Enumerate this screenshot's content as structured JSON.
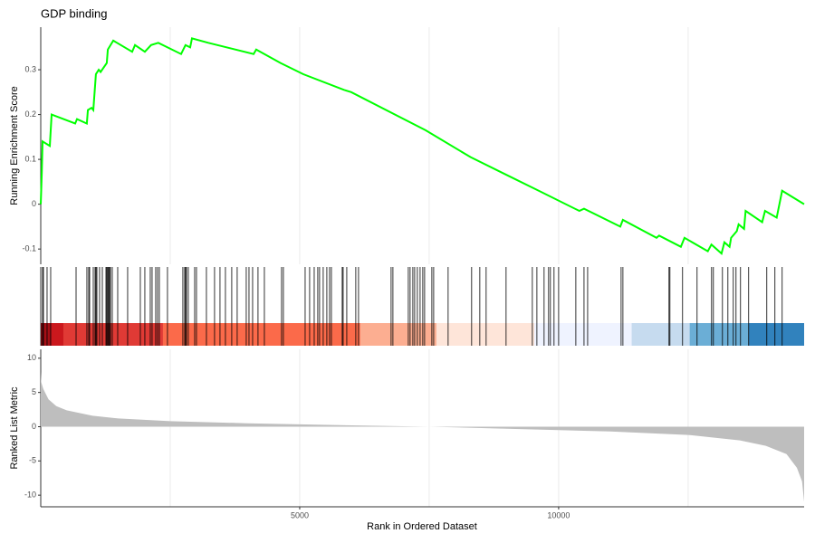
{
  "chart_data": [
    {
      "type": "line",
      "title": "GDP binding",
      "ylabel": "Running Enrichment Score",
      "color": "#00ff00",
      "xlim": [
        0,
        14740
      ],
      "ylim": [
        -0.134,
        0.395
      ],
      "yticks": [
        -0.1,
        0.0,
        0.1,
        0.2,
        0.3
      ],
      "grid": true,
      "xgrid": [
        2500,
        5000,
        7500,
        10000,
        12500
      ],
      "x": [
        0,
        20,
        35,
        175,
        210,
        665,
        700,
        890,
        910,
        980,
        1015,
        1065,
        1120,
        1155,
        1275,
        1295,
        1400,
        1765,
        1820,
        2010,
        2130,
        2270,
        2710,
        2795,
        2885,
        2920,
        3235,
        4110,
        4160,
        4630,
        5070,
        5855,
        5995,
        7430,
        8300,
        9000,
        9615,
        10400,
        10490,
        11190,
        11240,
        11890,
        11940,
        12360,
        12430,
        12880,
        12950,
        13145,
        13200,
        13300,
        13330,
        13440,
        13475,
        13580,
        13610,
        13930,
        13985,
        14210,
        14315,
        14740
      ],
      "values": [
        0,
        0.07,
        0.14,
        0.13,
        0.2,
        0.18,
        0.19,
        0.18,
        0.21,
        0.215,
        0.21,
        0.29,
        0.3,
        0.295,
        0.315,
        0.345,
        0.365,
        0.34,
        0.355,
        0.34,
        0.355,
        0.36,
        0.335,
        0.355,
        0.35,
        0.37,
        0.36,
        0.335,
        0.345,
        0.315,
        0.29,
        0.255,
        0.25,
        0.165,
        0.105,
        0.065,
        0.03,
        -0.015,
        -0.01,
        -0.05,
        -0.035,
        -0.075,
        -0.07,
        -0.095,
        -0.075,
        -0.105,
        -0.09,
        -0.11,
        -0.085,
        -0.095,
        -0.075,
        -0.06,
        -0.045,
        -0.055,
        -0.015,
        -0.04,
        -0.015,
        -0.03,
        0.03,
        0
      ]
    },
    {
      "type": "rug",
      "color": "#000000",
      "xlim": [
        0,
        14740
      ],
      "x": [
        0,
        35,
        52,
        122,
        192,
        682,
        891,
        926,
        944,
        1014,
        1049,
        1066,
        1084,
        1136,
        1189,
        1259,
        1276,
        1294,
        1311,
        1329,
        1346,
        1381,
        1486,
        1678,
        1923,
        2010,
        2115,
        2150,
        2220,
        2255,
        2290,
        2447,
        2744,
        2779,
        2797,
        2814,
        2849,
        2972,
        3007,
        3199,
        3356,
        3461,
        3566,
        3688,
        3793,
        3968,
        4021,
        4091,
        4195,
        4318,
        4650,
        4685,
        5105,
        5192,
        5280,
        5349,
        5384,
        5454,
        5524,
        5577,
        5612,
        5821,
        5839,
        5909,
        6083,
        6136,
        6765,
        6800,
        7097,
        7132,
        7185,
        7220,
        7272,
        7325,
        7377,
        7412,
        7552,
        7587,
        7866,
        8320,
        8478,
        8600,
        8985,
        9492,
        9580,
        9719,
        9806,
        9841,
        9911,
        10000,
        10332,
        10490,
        10560,
        11206,
        11241,
        12131,
        12149,
        12393,
        12673,
        12953,
        12988,
        13163,
        13268,
        13372,
        13425,
        13512,
        13669,
        14019,
        14176,
        14316
      ],
      "bands": [
        {
          "start": 0,
          "end": 192,
          "color": "#a50f15"
        },
        {
          "start": 192,
          "end": 437,
          "color": "#cb181d"
        },
        {
          "start": 437,
          "end": 2360,
          "color": "#e03a35"
        },
        {
          "start": 2360,
          "end": 6170,
          "color": "#fb6a4a"
        },
        {
          "start": 6170,
          "end": 7640,
          "color": "#fcae91"
        },
        {
          "start": 7640,
          "end": 9530,
          "color": "#fee5d9"
        },
        {
          "start": 9530,
          "end": 11410,
          "color": "#eff3ff"
        },
        {
          "start": 11410,
          "end": 12530,
          "color": "#c6dbef"
        },
        {
          "start": 12530,
          "end": 13670,
          "color": "#6baed6"
        },
        {
          "start": 13670,
          "end": 14740,
          "color": "#3182bd"
        }
      ]
    },
    {
      "type": "area",
      "ylabel": "Ranked List Metric",
      "xlabel": "Rank in Ordered Dataset",
      "color": "#bebebe",
      "xlim": [
        0,
        14740
      ],
      "ylim": [
        -11.7,
        11.3
      ],
      "yticks": [
        -10,
        -5,
        0,
        5,
        10
      ],
      "xticks": [
        5000,
        10000
      ],
      "grid": true,
      "xgrid": [
        2500,
        5000,
        7500,
        10000,
        12500
      ],
      "x": [
        0,
        10,
        50,
        150,
        300,
        500,
        1000,
        1500,
        2500,
        4000,
        6000,
        7500,
        9000,
        11000,
        12500,
        13500,
        14000,
        14400,
        14600,
        14700,
        14740
      ],
      "values": [
        8,
        6.5,
        5.5,
        4,
        3,
        2.4,
        1.6,
        1.2,
        0.8,
        0.5,
        0.2,
        0,
        -0.3,
        -0.7,
        -1.2,
        -2,
        -2.8,
        -4,
        -6,
        -8,
        -11
      ]
    }
  ]
}
